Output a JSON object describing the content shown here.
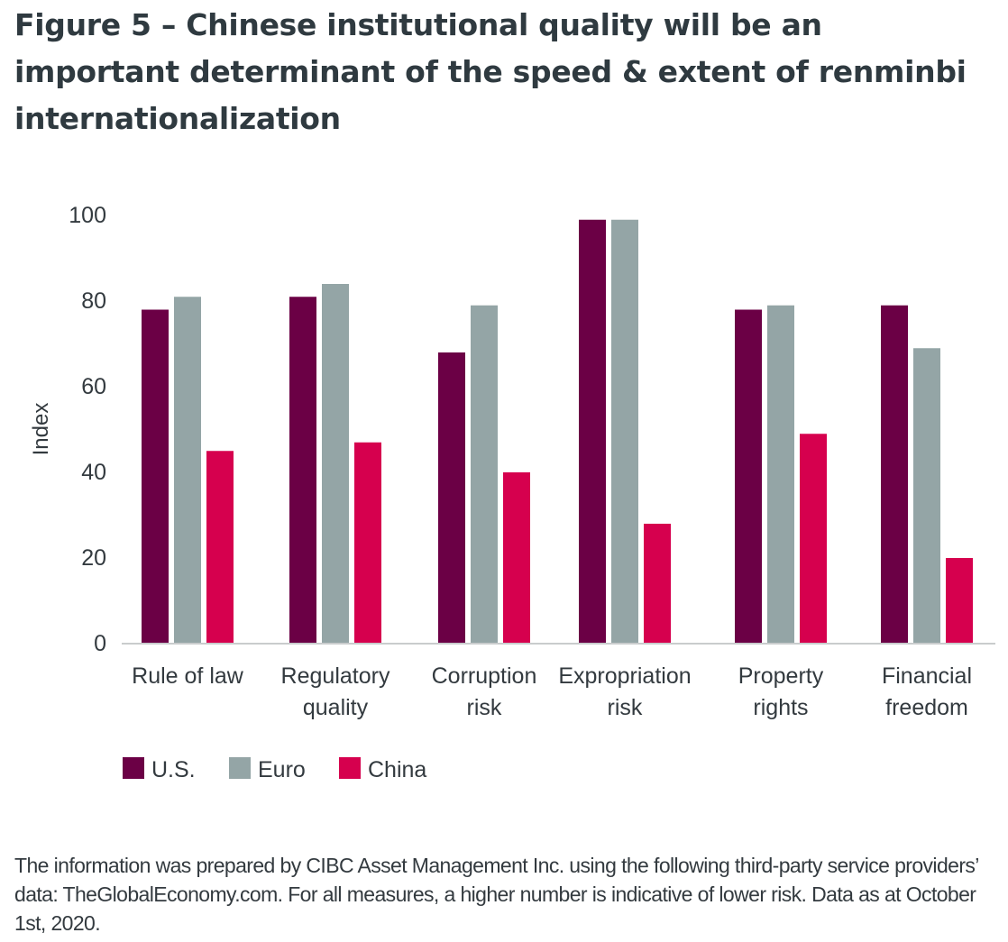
{
  "title": "Figure 5 – Chinese institutional quality will be an important determinant of the speed & extent of renminbi internationalization",
  "footnote": "The information was prepared by CIBC Asset Management Inc. using the following third-party service providers’ data: TheGlobalEconomy.com. For all measures, a higher number is indicative of lower risk. Data as at October 1st, 2020.",
  "chart_data": {
    "type": "bar",
    "categories": [
      [
        "Rule of law"
      ],
      [
        "Regulatory",
        "quality"
      ],
      [
        "Corruption",
        "risk"
      ],
      [
        "Expropriation",
        "risk"
      ],
      [
        "Property",
        "rights"
      ],
      [
        "Financial",
        "freedom"
      ]
    ],
    "series": [
      {
        "name": "U.S.",
        "color": "#6b0045",
        "values": [
          78,
          81,
          68,
          99,
          78,
          79
        ]
      },
      {
        "name": "Euro",
        "color": "#94a5a6",
        "values": [
          81,
          84,
          79,
          99,
          79,
          69
        ]
      },
      {
        "name": "China",
        "color": "#d6004e",
        "values": [
          45,
          47,
          40,
          28,
          49,
          20
        ]
      }
    ],
    "ylabel": "Index",
    "ylim": [
      0,
      100
    ],
    "yticks": [
      0,
      20,
      40,
      60,
      80,
      100
    ],
    "grid": false,
    "legend": "bottom-left"
  }
}
